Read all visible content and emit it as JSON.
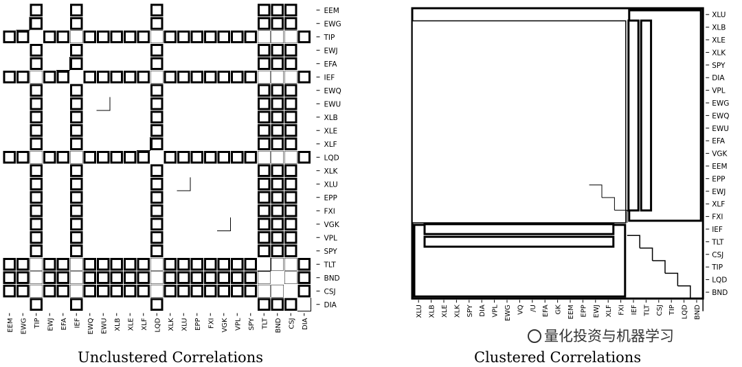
{
  "chart_data": [
    {
      "type": "heatmap",
      "title": "Unclustered Correlations",
      "labels": [
        "EEM",
        "EWG",
        "TIP",
        "EWJ",
        "EFA",
        "IEF",
        "EWQ",
        "EWU",
        "XLB",
        "XLE",
        "XLF",
        "LQD",
        "XLK",
        "XLU",
        "EPP",
        "FXI",
        "VGK",
        "VPL",
        "SPY",
        "TLT",
        "BND",
        "CSJ",
        "DIA"
      ],
      "row_labels": [
        "EEM",
        "EWG",
        "TIP",
        "EWJ",
        "EFA",
        "IEF",
        "EWQ",
        "EWU",
        "XLB",
        "XLE",
        "XLF",
        "LQD",
        "XLK",
        "XLU",
        "EPP",
        "FXI",
        "VGK",
        "VPL",
        "SPY",
        "TLT",
        "BND",
        "CSJ",
        "DIA"
      ],
      "col_labels": [
        "EEM",
        "EWG",
        "TIP",
        "EWJ",
        "EFA",
        "IEF",
        "EWQ",
        "EWU",
        "XLB",
        "XLE",
        "XLF",
        "LQD",
        "XLK",
        "XLU",
        "EPP",
        "FXI",
        "VGK",
        "VPL",
        "SPY",
        "TLT",
        "BND",
        "CSJ",
        "DIA"
      ],
      "low_correlation_assets": [
        "TIP",
        "IEF",
        "LQD",
        "TLT",
        "BND",
        "CSJ"
      ],
      "grid": false,
      "legend": "none"
    },
    {
      "type": "heatmap",
      "title": "Clustered Correlations",
      "row_labels": [
        "XLU",
        "XLB",
        "XLE",
        "XLK",
        "SPY",
        "DIA",
        "VPL",
        "EWG",
        "EWQ",
        "EWU",
        "EFA",
        "VGK",
        "EEM",
        "EPP",
        "EWJ",
        "XLF",
        "FXI",
        "IEF",
        "TLT",
        "CSJ",
        "TIP",
        "LQD",
        "BND"
      ],
      "col_labels": [
        "XLU",
        "XLB",
        "XLE",
        "XLK",
        "SPY",
        "DIA",
        "VPL",
        "EWG",
        "VQ",
        "/U",
        "EFA",
        "GK",
        "EEM",
        "EPP",
        "EWJ",
        "XLF",
        "FXI",
        "IEF",
        "TLT",
        "CSJ",
        "TIP",
        "LQD",
        "BND"
      ],
      "clusters": [
        {
          "members": [
            "XLU",
            "XLB",
            "XLE",
            "XLK",
            "SPY",
            "DIA",
            "VPL",
            "EWG",
            "EWQ",
            "EWU",
            "EFA",
            "VGK",
            "EEM",
            "EPP",
            "EWJ",
            "XLF",
            "FXI"
          ]
        },
        {
          "members": [
            "IEF",
            "TLT",
            "CSJ",
            "TIP",
            "LQD",
            "BND"
          ]
        }
      ],
      "grid": false,
      "legend": "none"
    }
  ],
  "watermark": "量化投资与机器学习"
}
